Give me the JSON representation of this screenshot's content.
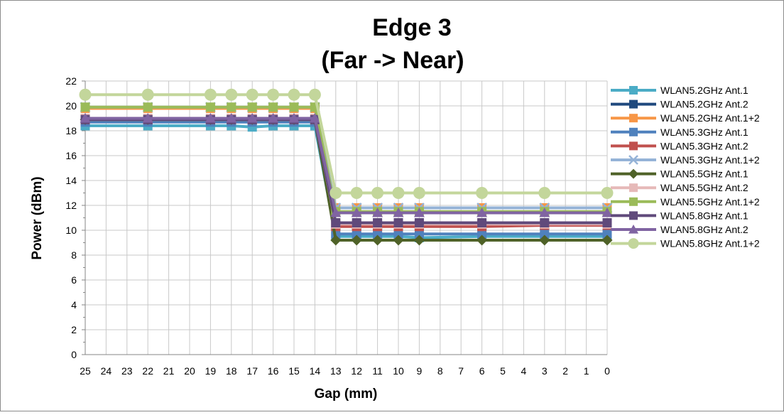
{
  "chart_data": {
    "type": "line",
    "title": "Edge 3",
    "subtitle": "(Far -> Near)",
    "xlabel": "Gap (mm)",
    "ylabel": "Power (dBm)",
    "xlim": [
      25,
      0
    ],
    "ylim": [
      0,
      22
    ],
    "x_ticks": [
      25,
      24,
      23,
      22,
      21,
      20,
      19,
      18,
      17,
      16,
      15,
      14,
      13,
      12,
      11,
      10,
      9,
      8,
      7,
      6,
      5,
      4,
      3,
      2,
      1,
      0
    ],
    "y_ticks": [
      0,
      2,
      4,
      6,
      8,
      10,
      12,
      14,
      16,
      18,
      20,
      22
    ],
    "grid": true,
    "legend": "right",
    "x": [
      25,
      22,
      19,
      18,
      17,
      16,
      15,
      14,
      13,
      12,
      11,
      10,
      9,
      6,
      3,
      0
    ],
    "series": [
      {
        "name": "WLAN5.2GHz Ant.1",
        "color": "#4bacc6",
        "marker": "square",
        "values": [
          18.4,
          18.4,
          18.4,
          18.4,
          18.3,
          18.4,
          18.4,
          18.4,
          9.5,
          9.5,
          9.5,
          9.5,
          9.4,
          9.5,
          9.5,
          9.5
        ]
      },
      {
        "name": "WLAN5.2GHz Ant.2",
        "color": "#1f497d",
        "marker": "square",
        "values": [
          18.9,
          18.9,
          18.9,
          18.9,
          18.9,
          18.9,
          18.9,
          18.9,
          10.4,
          10.4,
          10.4,
          10.4,
          10.4,
          10.4,
          10.4,
          10.4
        ]
      },
      {
        "name": "WLAN5.2GHz Ant.1+2",
        "color": "#f79646",
        "marker": "square",
        "values": [
          19.8,
          19.8,
          19.8,
          19.8,
          19.8,
          19.8,
          19.8,
          19.8,
          11.8,
          11.8,
          11.8,
          11.8,
          11.8,
          11.8,
          11.8,
          11.8
        ]
      },
      {
        "name": "WLAN5.3GHz Ant.1",
        "color": "#4f81bd",
        "marker": "square",
        "values": [
          18.7,
          18.7,
          18.7,
          18.7,
          18.7,
          18.7,
          18.7,
          18.7,
          9.7,
          9.7,
          9.7,
          9.7,
          9.7,
          9.7,
          9.7,
          9.7
        ]
      },
      {
        "name": "WLAN5.3GHz Ant.2",
        "color": "#c0504d",
        "marker": "square",
        "values": [
          18.9,
          18.9,
          18.9,
          18.9,
          18.9,
          18.9,
          18.9,
          18.9,
          10.3,
          10.3,
          10.3,
          10.3,
          10.3,
          10.3,
          10.4,
          10.4
        ]
      },
      {
        "name": "WLAN5.3GHz Ant.1+2",
        "color": "#95b3d7",
        "marker": "x",
        "values": [
          19.9,
          19.9,
          19.9,
          19.9,
          19.9,
          19.9,
          19.9,
          19.9,
          11.8,
          11.8,
          11.8,
          11.8,
          11.8,
          11.8,
          11.8,
          11.8
        ]
      },
      {
        "name": "WLAN5.5GHz Ant.1",
        "color": "#4f6228",
        "marker": "diamond",
        "values": [
          18.9,
          18.9,
          18.9,
          18.9,
          18.9,
          18.9,
          18.9,
          18.9,
          9.2,
          9.2,
          9.2,
          9.2,
          9.2,
          9.2,
          9.2,
          9.2
        ]
      },
      {
        "name": "WLAN5.5GHz Ant.2",
        "color": "#e6b9b8",
        "marker": "square",
        "values": [
          19.0,
          19.0,
          19.0,
          19.0,
          19.0,
          19.0,
          19.0,
          19.0,
          10.5,
          10.5,
          10.5,
          10.5,
          10.5,
          10.5,
          10.5,
          10.5
        ]
      },
      {
        "name": "WLAN5.5GHz Ant.1+2",
        "color": "#9bbb59",
        "marker": "square",
        "values": [
          19.9,
          19.9,
          19.9,
          19.9,
          19.9,
          19.9,
          19.9,
          19.9,
          11.5,
          11.5,
          11.5,
          11.5,
          11.5,
          11.5,
          11.5,
          11.5
        ]
      },
      {
        "name": "WLAN5.8GHz Ant.1",
        "color": "#604a7b",
        "marker": "square",
        "values": [
          18.9,
          18.9,
          18.9,
          18.9,
          18.9,
          18.9,
          18.9,
          18.9,
          10.6,
          10.6,
          10.6,
          10.6,
          10.6,
          10.6,
          10.6,
          10.6
        ]
      },
      {
        "name": "WLAN5.8GHz Ant.2",
        "color": "#8064a2",
        "marker": "triangle",
        "values": [
          19.0,
          19.0,
          19.0,
          19.0,
          19.0,
          19.0,
          19.0,
          19.0,
          11.4,
          11.4,
          11.4,
          11.4,
          11.4,
          11.4,
          11.4,
          11.4
        ]
      },
      {
        "name": "WLAN5.8GHz Ant.1+2",
        "color": "#c3d69b",
        "marker": "circle",
        "values": [
          20.9,
          20.9,
          20.9,
          20.9,
          20.9,
          20.9,
          20.9,
          20.9,
          13.0,
          13.0,
          13.0,
          13.0,
          13.0,
          13.0,
          13.0,
          13.0
        ]
      }
    ]
  }
}
